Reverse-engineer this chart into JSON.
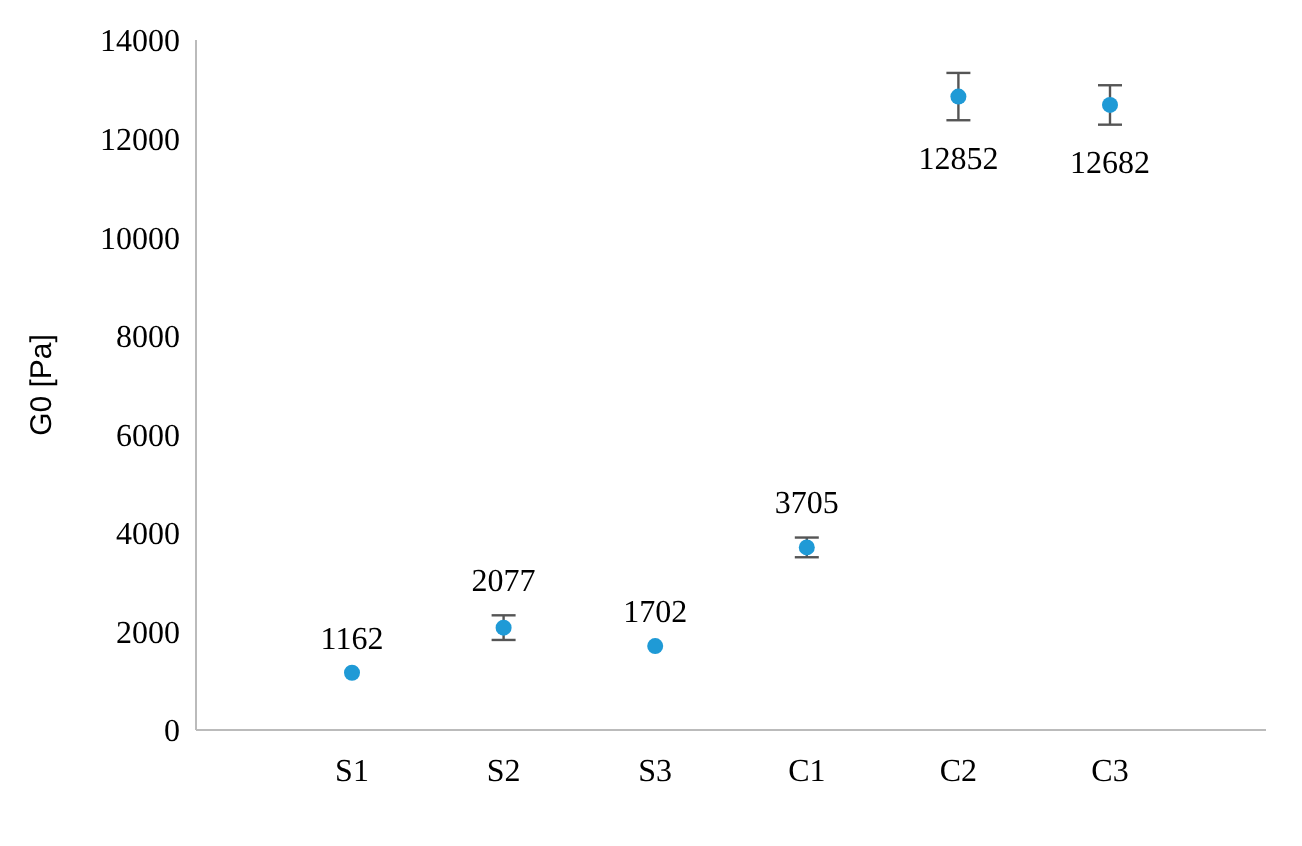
{
  "chart_data": {
    "type": "scatter",
    "ylabel": "G0 [Pa]",
    "categories": [
      "S1",
      "S2",
      "S3",
      "C1",
      "C2",
      "C3"
    ],
    "series": [
      {
        "color": "#1f9ad6",
        "values": [
          1162,
          2077,
          1702,
          3705,
          12852,
          12682
        ],
        "errors": [
          null,
          250,
          null,
          200,
          480,
          400
        ]
      }
    ],
    "ylim": [
      0,
      14000
    ],
    "yticks": [
      0,
      2000,
      4000,
      6000,
      8000,
      10000,
      12000,
      14000
    ],
    "marker": "circle",
    "data_labels": true,
    "grid": false,
    "legend": false
  }
}
